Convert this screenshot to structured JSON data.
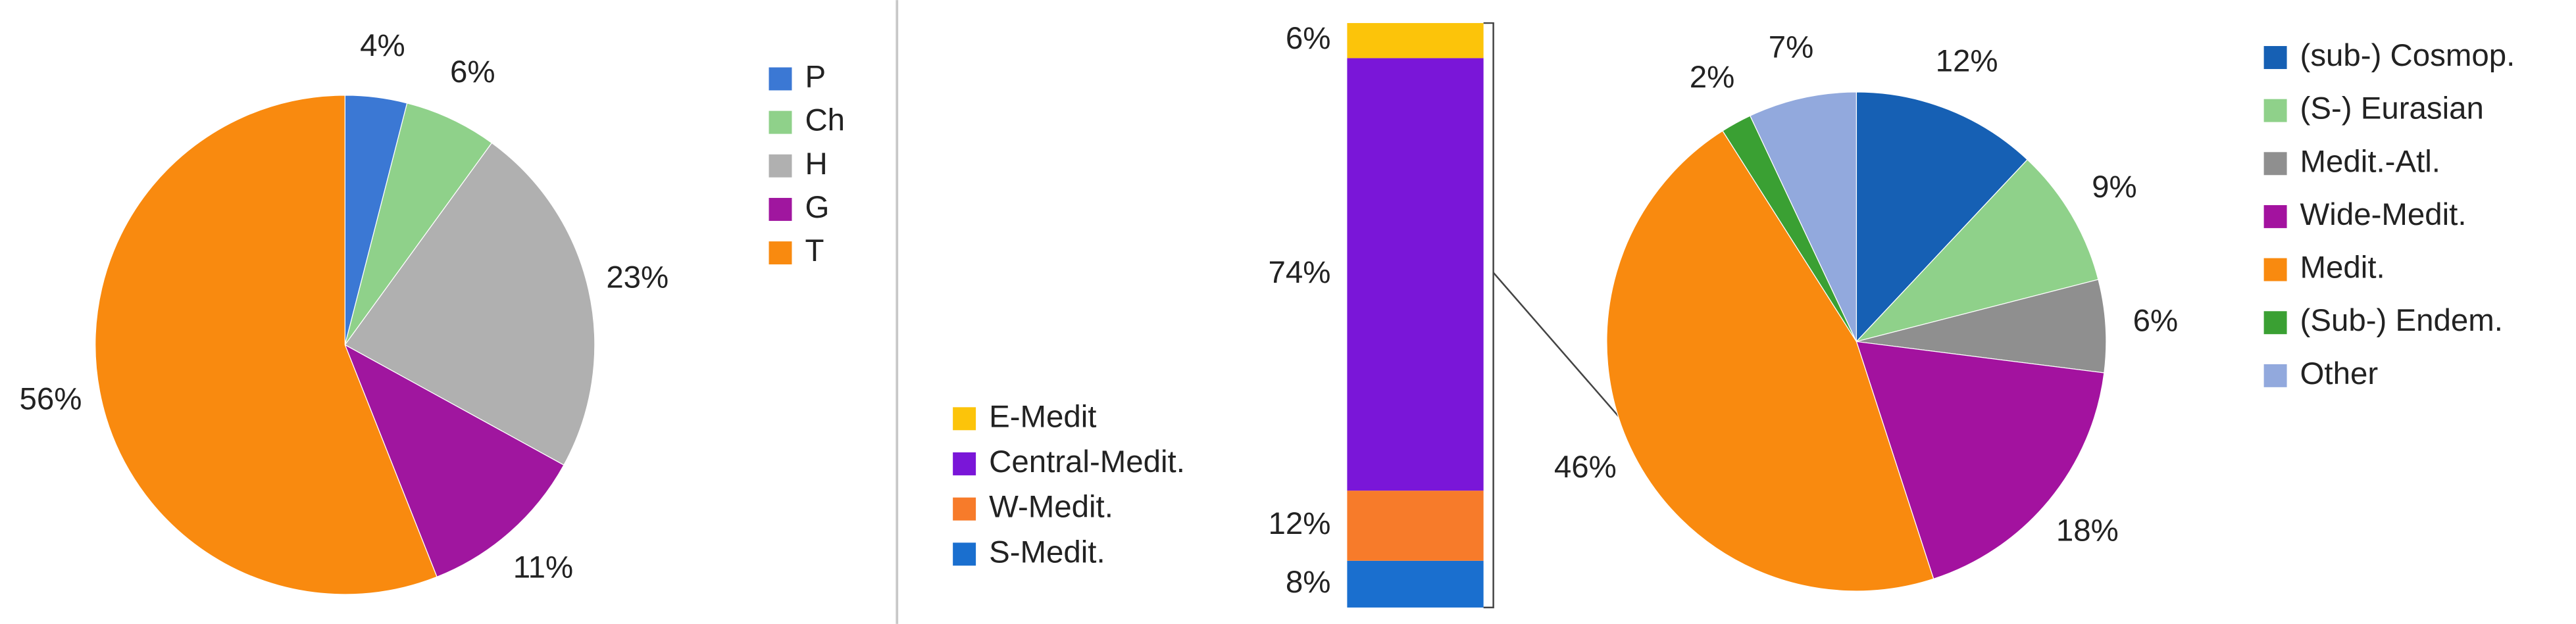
{
  "chart_data": [
    {
      "type": "pie",
      "categories": [
        "P",
        "Ch",
        "H",
        "G",
        "T"
      ],
      "values": [
        4,
        6,
        23,
        11,
        56
      ],
      "value_labels": [
        "4%",
        "6%",
        "23%",
        "11%",
        "56%"
      ],
      "colors": [
        "#3b78d4",
        "#8fd18a",
        "#b0b0b0",
        "#a0169f",
        "#f98a0f"
      ],
      "legend": "right"
    },
    {
      "type": "stacked-bar",
      "series": [
        {
          "name": "S-Medit.",
          "color": "#1a6fcf",
          "values": [
            8
          ],
          "value_labels": [
            "8%"
          ]
        },
        {
          "name": "W-Medit.",
          "color": "#f77b2a",
          "values": [
            12
          ],
          "value_labels": [
            "12%"
          ]
        },
        {
          "name": "Central-Medit.",
          "color": "#7a16d8",
          "values": [
            74
          ],
          "value_labels": [
            "74%"
          ]
        },
        {
          "name": "E-Medit",
          "color": "#fcc40a",
          "values": [
            6
          ],
          "value_labels": [
            "6%"
          ]
        }
      ],
      "legend": "left"
    },
    {
      "type": "pie",
      "categories": [
        "(sub-) Cosmop.",
        "(S-) Eurasian",
        "Medit.-Atl.",
        "Wide-Medit.",
        "Medit.",
        "(Sub-) Endem.",
        "Other"
      ],
      "values": [
        12,
        9,
        6,
        18,
        46,
        2,
        7
      ],
      "value_labels": [
        "12%",
        "9%",
        "6%",
        "18%",
        "46%",
        "2%",
        "7%"
      ],
      "colors": [
        "#1660b4",
        "#8fd18a",
        "#8f8f8f",
        "#a3129f",
        "#f98a0f",
        "#3aa033",
        "#92a9dd"
      ],
      "legend": "right"
    }
  ]
}
